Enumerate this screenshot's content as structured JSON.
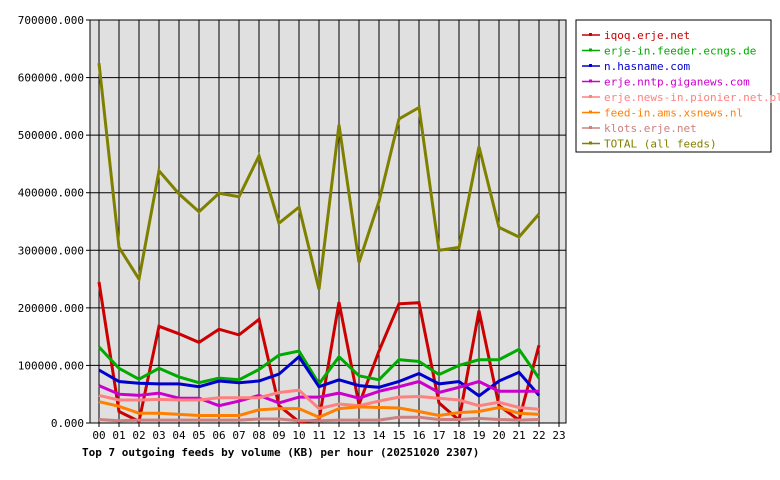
{
  "chart_data": {
    "type": "line",
    "title": "Top 7 outgoing feeds by volume (KB) per hour (20251020 2307)",
    "xlabel": "",
    "ylabel": "",
    "ylim": [
      0,
      700000
    ],
    "yticks": [
      "0.000",
      "100000.000",
      "200000.000",
      "300000.000",
      "400000.000",
      "500000.000",
      "600000.000",
      "700000.000"
    ],
    "categories": [
      "00",
      "01",
      "02",
      "03",
      "04",
      "05",
      "06",
      "07",
      "08",
      "09",
      "10",
      "11",
      "12",
      "13",
      "14",
      "15",
      "16",
      "17",
      "18",
      "19",
      "20",
      "21",
      "22",
      "23"
    ],
    "grid": true,
    "legend_position": "right-top",
    "series": [
      {
        "name": "iqoq.erje.net",
        "color": "#cc0000",
        "values": [
          245000,
          20000,
          3000,
          168000,
          155000,
          140000,
          163000,
          153000,
          180000,
          30000,
          2000,
          5000,
          210000,
          32000,
          125000,
          207000,
          209000,
          35000,
          5000,
          195000,
          30000,
          5000,
          135000
        ]
      },
      {
        "name": "erje-in.feeder.ecngs.de",
        "color": "#00aa00",
        "values": [
          132000,
          95000,
          76000,
          95000,
          80000,
          70000,
          78000,
          75000,
          93000,
          118000,
          125000,
          68000,
          115000,
          82000,
          75000,
          110000,
          107000,
          84000,
          100000,
          110000,
          110000,
          128000,
          78000
        ]
      },
      {
        "name": "n.hasname.com",
        "color": "#0000cc",
        "values": [
          92000,
          72000,
          69000,
          68000,
          68000,
          63000,
          73000,
          70000,
          73000,
          85000,
          115000,
          63000,
          75000,
          65000,
          62000,
          72000,
          86000,
          68000,
          72000,
          47000,
          73000,
          88000,
          48000
        ]
      },
      {
        "name": "erje.nntp.giganews.com",
        "color": "#cc00cc",
        "values": [
          65000,
          50000,
          48000,
          52000,
          43000,
          43000,
          30000,
          38000,
          48000,
          35000,
          45000,
          45000,
          52000,
          43000,
          55000,
          63000,
          72000,
          53000,
          62000,
          72000,
          55000,
          55000,
          55000
        ]
      },
      {
        "name": "erje.news-in.pionier.net.pl",
        "color": "#ff8080",
        "values": [
          48000,
          40000,
          40000,
          41000,
          40000,
          40000,
          44000,
          44000,
          44000,
          53000,
          57000,
          25000,
          33000,
          30000,
          38000,
          45000,
          46000,
          43000,
          40000,
          30000,
          36000,
          27000,
          24000
        ]
      },
      {
        "name": "feed-in.ams.xsnews.nl",
        "color": "#ff8000",
        "values": [
          37000,
          29000,
          17000,
          17000,
          15000,
          13000,
          13000,
          13000,
          23000,
          25000,
          25000,
          10000,
          25000,
          28000,
          27000,
          26000,
          20000,
          13000,
          18000,
          20000,
          27000,
          17000,
          15000
        ]
      },
      {
        "name": "klots.erje.net",
        "color": "#cc8080",
        "values": [
          6000,
          4000,
          5000,
          5000,
          5000,
          5000,
          5000,
          5000,
          7000,
          7000,
          4000,
          4000,
          5000,
          5000,
          5000,
          10000,
          10000,
          6000,
          6000,
          8000,
          6000,
          5000,
          6000
        ]
      },
      {
        "name": "TOTAL (all feeds)",
        "color": "#808000",
        "values": [
          625000,
          305000,
          250000,
          438000,
          398000,
          367000,
          399000,
          393000,
          464000,
          347000,
          375000,
          232000,
          518000,
          279000,
          385000,
          528000,
          548000,
          300000,
          305000,
          480000,
          340000,
          323000,
          363000
        ]
      }
    ]
  },
  "colors": {
    "plot_background": "#e0e0e0",
    "grid": "#000000"
  }
}
